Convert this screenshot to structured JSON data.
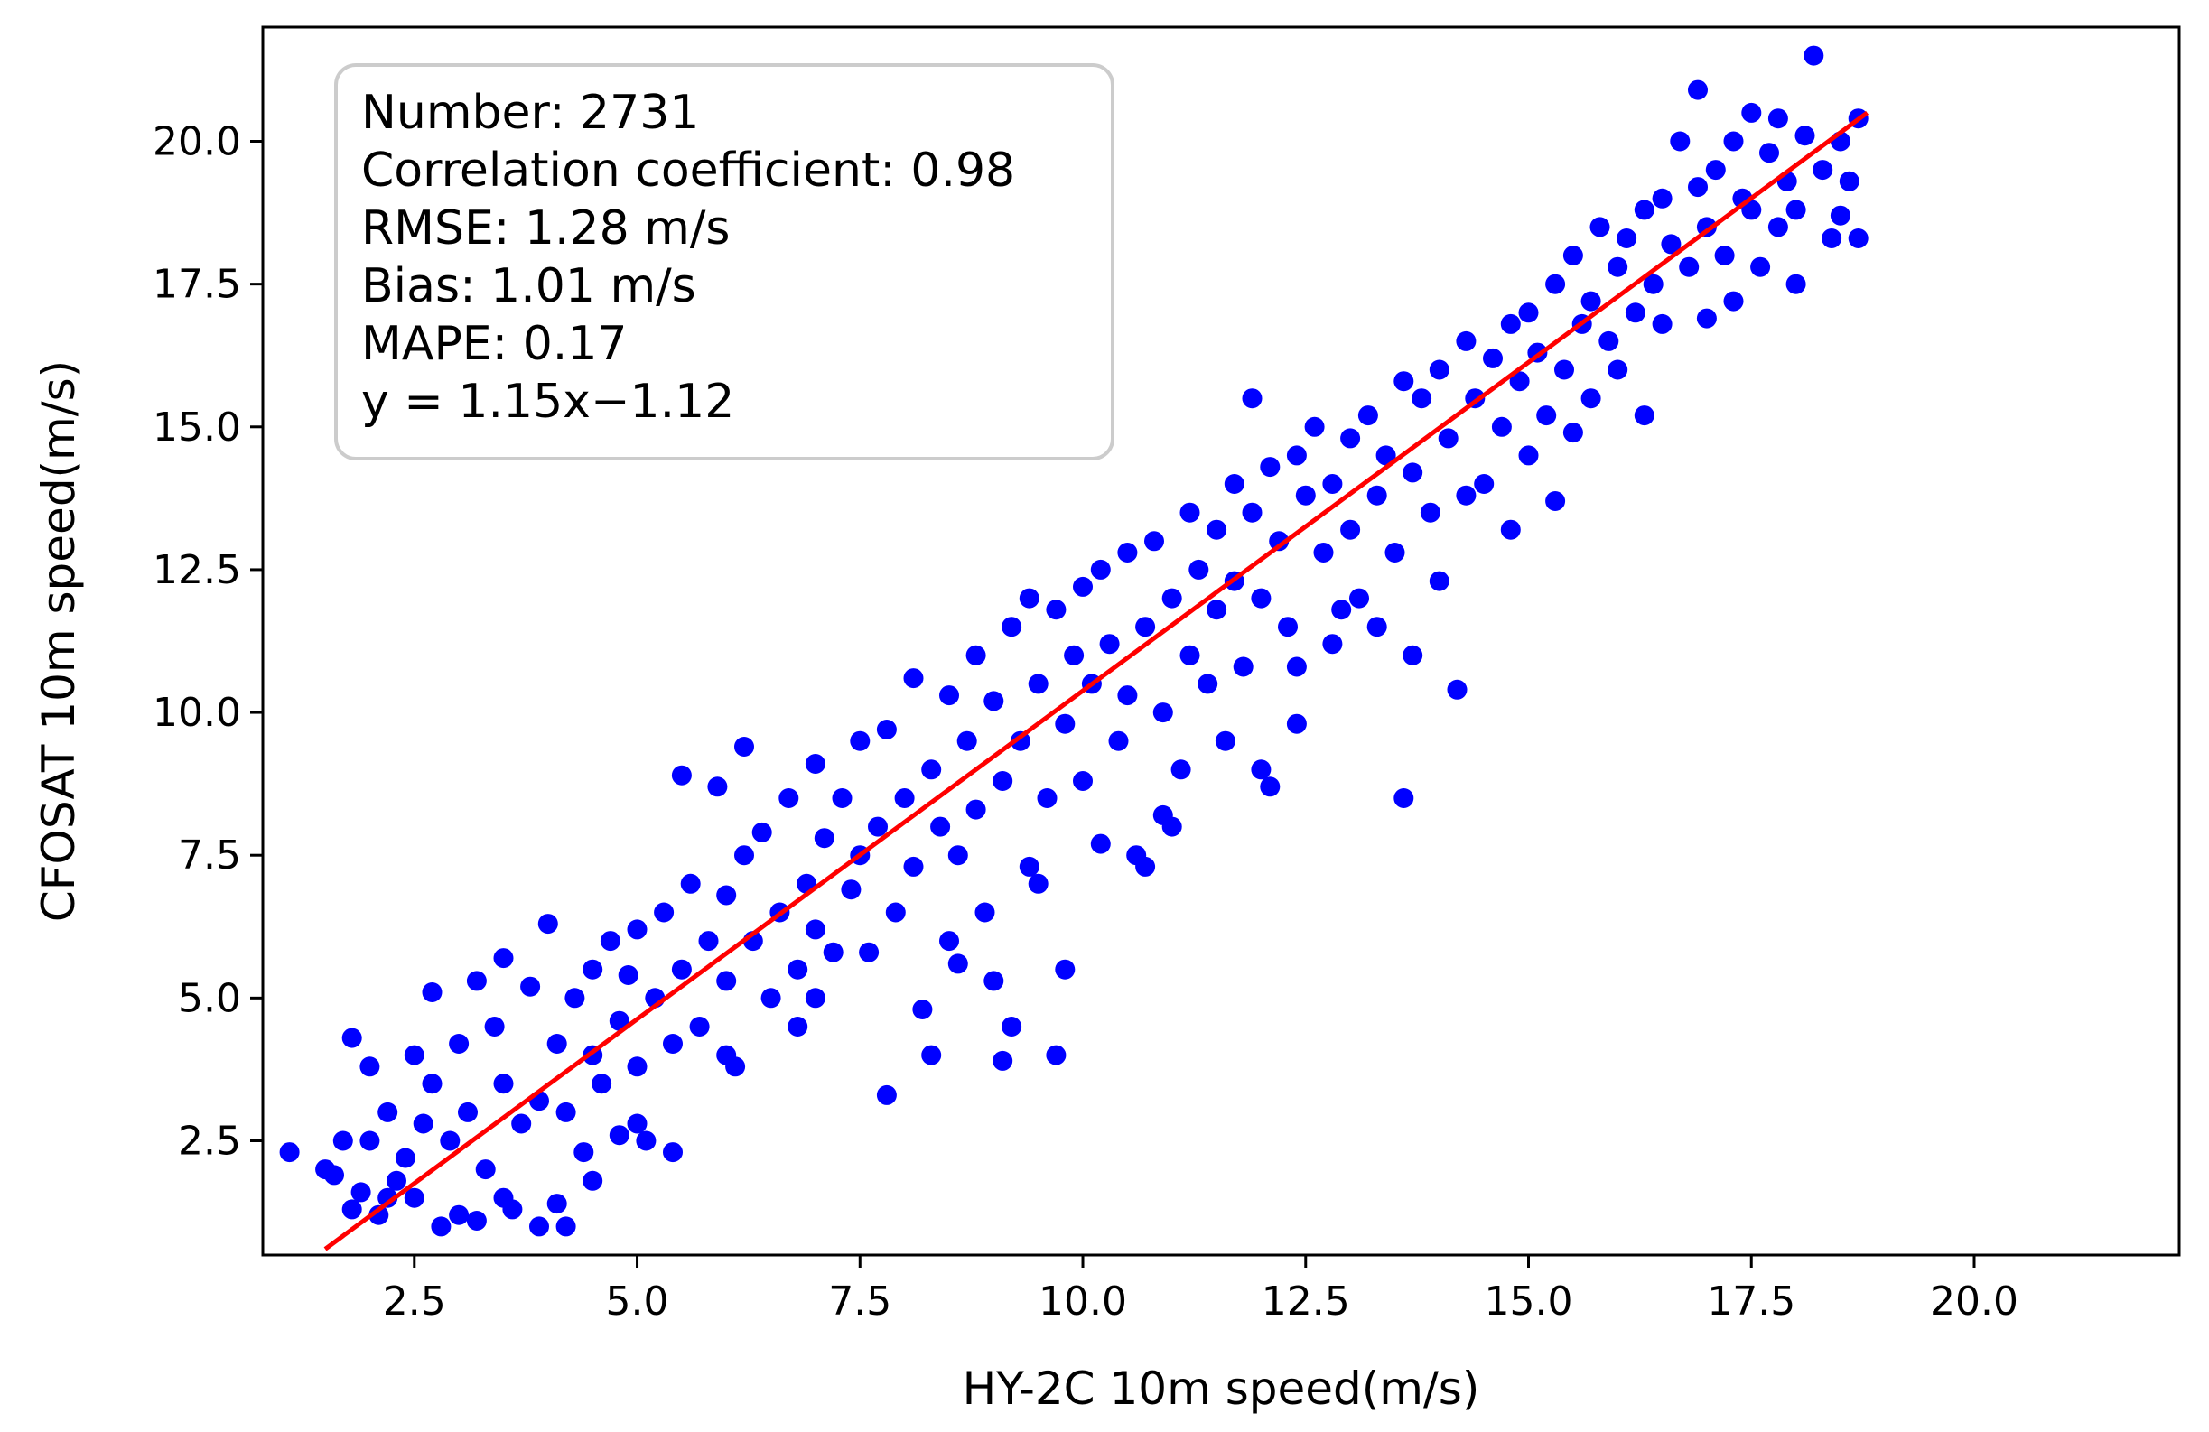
{
  "chart_data": {
    "type": "scatter",
    "xlabel": "HY-2C 10m speed(m/s)",
    "ylabel": "CFOSAT 10m speed(m/s)",
    "xlim": [
      0.8,
      22.3
    ],
    "ylim": [
      0.5,
      22.0
    ],
    "x_ticks": [
      2.5,
      5.0,
      7.5,
      10.0,
      12.5,
      15.0,
      17.5,
      20.0
    ],
    "y_ticks": [
      2.5,
      5.0,
      7.5,
      10.0,
      12.5,
      15.0,
      17.5,
      20.0
    ],
    "x_tick_labels": [
      "2.5",
      "5.0",
      "7.5",
      "10.0",
      "12.5",
      "15.0",
      "17.5",
      "20.0"
    ],
    "y_tick_labels": [
      "2.5",
      "5.0",
      "7.5",
      "10.0",
      "12.5",
      "15.0",
      "17.5",
      "20.0"
    ],
    "grid": false,
    "point_color": "#0000ff",
    "line_color": "#ff0000",
    "fit_line": {
      "slope": 1.15,
      "intercept": -1.12,
      "x_range": [
        1.5,
        18.8
      ]
    },
    "stats_box": {
      "placement": "top-left",
      "lines": [
        "Number: 2731",
        "Correlation coefficient: 0.98",
        "RMSE: 1.28 m/s",
        "Bias: 1.01 m/s",
        "MAPE: 0.17",
        "y = 1.15x−1.12"
      ]
    },
    "points": [
      [
        1.1,
        2.3
      ],
      [
        1.5,
        2.0
      ],
      [
        1.6,
        1.9
      ],
      [
        1.7,
        2.5
      ],
      [
        1.8,
        1.3
      ],
      [
        1.8,
        4.3
      ],
      [
        1.9,
        1.6
      ],
      [
        2.0,
        2.5
      ],
      [
        2.0,
        3.8
      ],
      [
        2.1,
        1.2
      ],
      [
        2.2,
        3.0
      ],
      [
        2.3,
        1.8
      ],
      [
        2.4,
        2.2
      ],
      [
        2.5,
        4.0
      ],
      [
        2.5,
        1.5
      ],
      [
        2.6,
        2.8
      ],
      [
        2.7,
        3.5
      ],
      [
        2.7,
        5.1
      ],
      [
        2.8,
        1.0
      ],
      [
        2.9,
        2.5
      ],
      [
        3.0,
        4.2
      ],
      [
        3.0,
        1.2
      ],
      [
        3.1,
        3.0
      ],
      [
        3.2,
        5.3
      ],
      [
        3.3,
        2.0
      ],
      [
        3.4,
        4.5
      ],
      [
        3.5,
        3.5
      ],
      [
        3.5,
        5.7
      ],
      [
        3.6,
        1.3
      ],
      [
        3.7,
        2.8
      ],
      [
        3.8,
        5.2
      ],
      [
        3.9,
        3.2
      ],
      [
        3.9,
        1.0
      ],
      [
        4.0,
        6.3
      ],
      [
        4.1,
        4.2
      ],
      [
        4.1,
        1.4
      ],
      [
        4.2,
        3.0
      ],
      [
        4.3,
        5.0
      ],
      [
        4.4,
        2.3
      ],
      [
        4.5,
        4.0
      ],
      [
        4.5,
        5.5
      ],
      [
        4.6,
        3.5
      ],
      [
        4.7,
        6.0
      ],
      [
        4.8,
        2.6
      ],
      [
        4.8,
        4.6
      ],
      [
        4.9,
        5.4
      ],
      [
        5.0,
        3.8
      ],
      [
        5.0,
        6.2
      ],
      [
        5.1,
        2.5
      ],
      [
        5.2,
        5.0
      ],
      [
        5.3,
        6.5
      ],
      [
        5.4,
        4.2
      ],
      [
        5.4,
        2.3
      ],
      [
        5.5,
        8.9
      ],
      [
        5.5,
        5.5
      ],
      [
        5.6,
        7.0
      ],
      [
        5.7,
        4.5
      ],
      [
        5.8,
        6.0
      ],
      [
        5.9,
        8.7
      ],
      [
        6.0,
        5.3
      ],
      [
        6.0,
        6.8
      ],
      [
        6.1,
        3.8
      ],
      [
        6.2,
        7.5
      ],
      [
        6.2,
        9.4
      ],
      [
        6.3,
        6.0
      ],
      [
        6.4,
        7.9
      ],
      [
        6.5,
        5.0
      ],
      [
        6.6,
        6.5
      ],
      [
        6.7,
        8.5
      ],
      [
        6.8,
        5.5
      ],
      [
        6.9,
        7.0
      ],
      [
        7.0,
        9.1
      ],
      [
        7.0,
        6.2
      ],
      [
        7.1,
        7.8
      ],
      [
        7.2,
        5.8
      ],
      [
        7.3,
        8.5
      ],
      [
        7.4,
        6.9
      ],
      [
        7.5,
        9.5
      ],
      [
        7.5,
        7.5
      ],
      [
        7.6,
        5.8
      ],
      [
        7.7,
        8.0
      ],
      [
        7.8,
        9.7
      ],
      [
        7.8,
        3.3
      ],
      [
        7.9,
        6.5
      ],
      [
        8.0,
        8.5
      ],
      [
        8.1,
        10.6
      ],
      [
        8.1,
        7.3
      ],
      [
        8.2,
        4.8
      ],
      [
        8.3,
        9.0
      ],
      [
        8.3,
        4.0
      ],
      [
        8.4,
        8.0
      ],
      [
        8.5,
        10.3
      ],
      [
        8.6,
        7.5
      ],
      [
        8.6,
        5.6
      ],
      [
        8.7,
        9.5
      ],
      [
        8.8,
        11.0
      ],
      [
        8.8,
        8.3
      ],
      [
        8.9,
        6.5
      ],
      [
        9.0,
        10.2
      ],
      [
        9.0,
        5.3
      ],
      [
        9.1,
        8.8
      ],
      [
        9.1,
        3.9
      ],
      [
        9.2,
        11.5
      ],
      [
        9.2,
        4.5
      ],
      [
        9.3,
        9.5
      ],
      [
        9.4,
        12.0
      ],
      [
        9.4,
        7.3
      ],
      [
        9.5,
        10.5
      ],
      [
        9.6,
        8.5
      ],
      [
        9.7,
        11.8
      ],
      [
        9.7,
        4.0
      ],
      [
        9.8,
        9.8
      ],
      [
        9.8,
        5.5
      ],
      [
        9.9,
        11.0
      ],
      [
        10.0,
        12.2
      ],
      [
        10.0,
        8.8
      ],
      [
        10.1,
        10.5
      ],
      [
        10.2,
        12.5
      ],
      [
        10.2,
        7.7
      ],
      [
        10.3,
        11.2
      ],
      [
        10.4,
        9.5
      ],
      [
        10.5,
        12.8
      ],
      [
        10.5,
        10.3
      ],
      [
        10.6,
        7.5
      ],
      [
        10.7,
        11.5
      ],
      [
        10.7,
        7.3
      ],
      [
        10.8,
        13.0
      ],
      [
        10.9,
        10.0
      ],
      [
        10.9,
        8.2
      ],
      [
        11.0,
        12.0
      ],
      [
        11.1,
        9.0
      ],
      [
        11.2,
        13.5
      ],
      [
        11.2,
        11.0
      ],
      [
        11.3,
        12.5
      ],
      [
        11.4,
        10.5
      ],
      [
        11.5,
        13.2
      ],
      [
        11.5,
        11.8
      ],
      [
        11.6,
        9.5
      ],
      [
        11.7,
        14.0
      ],
      [
        11.7,
        12.3
      ],
      [
        11.8,
        10.8
      ],
      [
        11.9,
        13.5
      ],
      [
        11.9,
        15.5
      ],
      [
        12.0,
        12.0
      ],
      [
        12.0,
        9.0
      ],
      [
        12.1,
        14.3
      ],
      [
        12.1,
        8.7
      ],
      [
        12.2,
        13.0
      ],
      [
        12.3,
        11.5
      ],
      [
        12.4,
        14.5
      ],
      [
        12.4,
        10.8
      ],
      [
        12.4,
        9.8
      ],
      [
        12.5,
        13.8
      ],
      [
        12.6,
        15.0
      ],
      [
        12.7,
        12.8
      ],
      [
        12.8,
        14.0
      ],
      [
        12.9,
        11.8
      ],
      [
        13.0,
        14.8
      ],
      [
        13.0,
        13.2
      ],
      [
        13.1,
        12.0
      ],
      [
        13.2,
        15.2
      ],
      [
        13.3,
        13.8
      ],
      [
        13.3,
        11.5
      ],
      [
        13.4,
        14.5
      ],
      [
        13.5,
        12.8
      ],
      [
        13.6,
        15.8
      ],
      [
        13.6,
        8.5
      ],
      [
        13.7,
        14.2
      ],
      [
        13.7,
        11.0
      ],
      [
        13.8,
        15.5
      ],
      [
        13.9,
        13.5
      ],
      [
        14.0,
        16.0
      ],
      [
        14.0,
        12.3
      ],
      [
        14.1,
        14.8
      ],
      [
        14.2,
        10.4
      ],
      [
        14.3,
        16.5
      ],
      [
        14.3,
        13.8
      ],
      [
        14.4,
        15.5
      ],
      [
        14.5,
        14.0
      ],
      [
        14.6,
        16.2
      ],
      [
        14.7,
        15.0
      ],
      [
        14.8,
        16.8
      ],
      [
        14.8,
        13.2
      ],
      [
        14.9,
        15.8
      ],
      [
        15.0,
        17.0
      ],
      [
        15.0,
        14.5
      ],
      [
        15.1,
        16.3
      ],
      [
        15.2,
        15.2
      ],
      [
        15.3,
        17.5
      ],
      [
        15.3,
        13.7
      ],
      [
        15.4,
        16.0
      ],
      [
        15.5,
        18.0
      ],
      [
        15.5,
        14.9
      ],
      [
        15.6,
        16.8
      ],
      [
        15.7,
        17.2
      ],
      [
        15.7,
        15.5
      ],
      [
        15.8,
        18.5
      ],
      [
        15.9,
        16.5
      ],
      [
        16.0,
        17.8
      ],
      [
        16.0,
        16.0
      ],
      [
        16.1,
        18.3
      ],
      [
        16.2,
        17.0
      ],
      [
        16.3,
        18.8
      ],
      [
        16.3,
        15.2
      ],
      [
        16.4,
        17.5
      ],
      [
        16.5,
        19.0
      ],
      [
        16.5,
        16.8
      ],
      [
        16.6,
        18.2
      ],
      [
        16.7,
        20.0
      ],
      [
        16.8,
        17.8
      ],
      [
        16.9,
        19.2
      ],
      [
        16.9,
        20.9
      ],
      [
        17.0,
        18.5
      ],
      [
        17.0,
        16.9
      ],
      [
        17.1,
        19.5
      ],
      [
        17.2,
        18.0
      ],
      [
        17.3,
        20.0
      ],
      [
        17.3,
        17.2
      ],
      [
        17.4,
        19.0
      ],
      [
        17.5,
        18.8
      ],
      [
        17.5,
        20.5
      ],
      [
        17.6,
        17.8
      ],
      [
        17.7,
        19.8
      ],
      [
        17.8,
        18.5
      ],
      [
        17.8,
        20.4
      ],
      [
        17.9,
        19.3
      ],
      [
        18.0,
        17.5
      ],
      [
        18.0,
        18.8
      ],
      [
        18.1,
        20.1
      ],
      [
        18.2,
        21.5
      ],
      [
        18.3,
        19.5
      ],
      [
        18.4,
        18.3
      ],
      [
        18.5,
        20.0
      ],
      [
        18.5,
        18.7
      ],
      [
        18.6,
        19.3
      ],
      [
        18.7,
        18.3
      ],
      [
        18.7,
        20.4
      ],
      [
        3.5,
        1.5
      ],
      [
        4.5,
        1.8
      ],
      [
        6.0,
        4.0
      ],
      [
        7.0,
        5.0
      ],
      [
        5.0,
        2.8
      ],
      [
        2.2,
        1.5
      ],
      [
        3.2,
        1.1
      ],
      [
        4.2,
        1.0
      ],
      [
        8.5,
        6.0
      ],
      [
        9.5,
        7.0
      ],
      [
        11.0,
        8.0
      ],
      [
        6.8,
        4.5
      ],
      [
        12.8,
        11.2
      ]
    ]
  }
}
